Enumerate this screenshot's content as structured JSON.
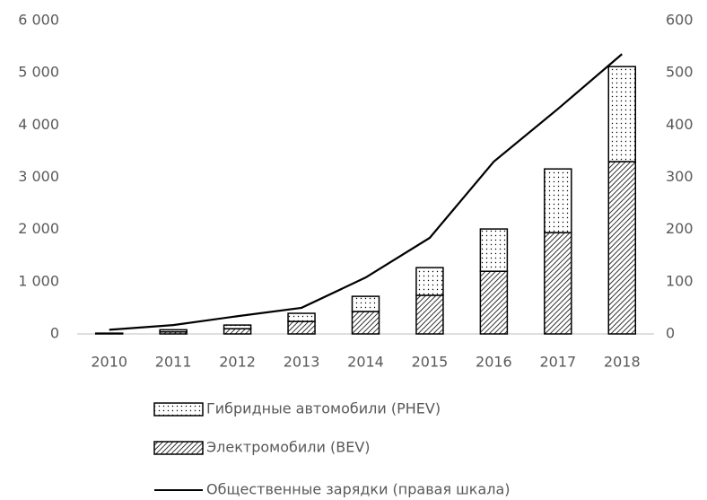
{
  "chart_data": {
    "type": "bar",
    "categories": [
      "2010",
      "2011",
      "2012",
      "2013",
      "2014",
      "2015",
      "2016",
      "2017",
      "2018"
    ],
    "series": [
      {
        "name": "Гибридные автомобили (PHEV)",
        "type": "bar",
        "pattern": "dots",
        "color": "#000000",
        "values": [
          5,
          40,
          70,
          155,
          290,
          530,
          810,
          1220,
          1820
        ]
      },
      {
        "name": "Электромобили (BEV)",
        "type": "bar",
        "pattern": "hatch",
        "color": "#000000",
        "values": [
          10,
          40,
          100,
          240,
          430,
          740,
          1200,
          1940,
          3300
        ]
      },
      {
        "name": "Общественные зарядки (правая шкала)",
        "type": "line",
        "axis": "y2",
        "color": "#000000",
        "values": [
          8,
          17,
          34,
          50,
          108,
          184,
          330,
          431,
          536
        ]
      }
    ],
    "ylim": [
      0,
      6000
    ],
    "yticks": [
      0,
      {
        "value": 1000,
        "label": "1 000"
      },
      {
        "value": 2000,
        "label": "2 000"
      },
      {
        "value": 3000,
        "label": "3 000"
      },
      {
        "value": 4000,
        "label": "4 000"
      },
      {
        "value": 5000,
        "label": "5 000"
      },
      {
        "value": 6000,
        "label": "6 000"
      }
    ],
    "y2lim": [
      0,
      600
    ],
    "y2ticks": [
      0,
      100,
      200,
      300,
      400,
      500,
      600
    ],
    "grid": false,
    "legend": "bottom"
  }
}
